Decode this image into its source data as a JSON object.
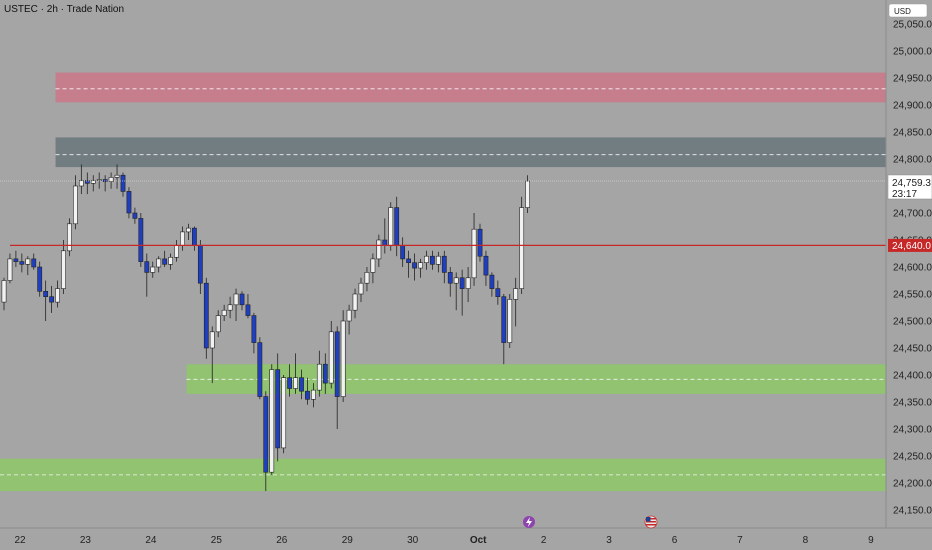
{
  "header": {
    "title": "USTEC · 2h · Trade Nation"
  },
  "currency": "USD",
  "price_badge": {
    "value": "24,759.3",
    "countdown": "23:17"
  },
  "level_badge": {
    "value": "24,640.0"
  },
  "icons": [
    "lightning-icon",
    "us-flag-icon"
  ],
  "colors": {
    "background": "#a5a5a5",
    "bull_candle": "#f2f2f2",
    "bear_candle": "#1f3fbf",
    "level_line": "#c62828",
    "supply_zone": "#c77a8a",
    "resistance_zone": "#6f7a80",
    "demand_zone": "#8fc46e"
  },
  "chart_data": {
    "type": "candlestick",
    "title": "USTEC · 2h · Trade Nation",
    "ylim": [
      24125,
      25075
    ],
    "y_ticks": [
      25050,
      25000,
      24950,
      24900,
      24850,
      24800,
      24750,
      24700,
      24650,
      24600,
      24550,
      24500,
      24450,
      24400,
      24350,
      24300,
      24250,
      24200,
      24150
    ],
    "y_tick_labels": [
      "25,050.0",
      "25,000.0",
      "24,950.0",
      "24,900.0",
      "24,850.0",
      "24,800.0",
      "24,750.0",
      "24,700.0",
      "24,650.0",
      "24,600.0",
      "24,550.0",
      "24,500.0",
      "24,450.0",
      "24,400.0",
      "24,350.0",
      "24,300.0",
      "24,250.0",
      "24,200.0",
      "24,150.0"
    ],
    "x_ticks": [
      {
        "label": "22",
        "bar": 0
      },
      {
        "label": "23",
        "bar": 11
      },
      {
        "label": "24",
        "bar": 22
      },
      {
        "label": "25",
        "bar": 33
      },
      {
        "label": "26",
        "bar": 44
      },
      {
        "label": "29",
        "bar": 55
      },
      {
        "label": "30",
        "bar": 66
      },
      {
        "label": "Oct",
        "bar": 77
      },
      {
        "label": "2",
        "bar": 88
      },
      {
        "label": "3",
        "bar": 99
      },
      {
        "label": "6",
        "bar": 110
      },
      {
        "label": "7",
        "bar": 121
      },
      {
        "label": "8",
        "bar": 132
      },
      {
        "label": "9",
        "bar": 143
      }
    ],
    "current_price": 24759.3,
    "horizontal_level": 24640.0,
    "zones": [
      {
        "name": "supply",
        "from": 24905,
        "to": 24960,
        "mid": 24930,
        "start_bar": 9
      },
      {
        "name": "resistance",
        "from": 24785,
        "to": 24840,
        "mid": 24808,
        "start_bar": 9
      },
      {
        "name": "demand-upper",
        "from": 24365,
        "to": 24420,
        "mid": 24392,
        "start_bar": 31
      },
      {
        "name": "demand-lower",
        "from": 24185,
        "to": 24245,
        "mid": 24215,
        "start_bar": 0
      }
    ],
    "candles": [
      {
        "o": 24535,
        "h": 24580,
        "l": 24520,
        "c": 24575
      },
      {
        "o": 24575,
        "h": 24625,
        "l": 24570,
        "c": 24615
      },
      {
        "o": 24615,
        "h": 24630,
        "l": 24600,
        "c": 24610
      },
      {
        "o": 24610,
        "h": 24625,
        "l": 24590,
        "c": 24605
      },
      {
        "o": 24605,
        "h": 24620,
        "l": 24585,
        "c": 24615
      },
      {
        "o": 24615,
        "h": 24625,
        "l": 24595,
        "c": 24600
      },
      {
        "o": 24600,
        "h": 24610,
        "l": 24545,
        "c": 24555
      },
      {
        "o": 24555,
        "h": 24575,
        "l": 24500,
        "c": 24545
      },
      {
        "o": 24545,
        "h": 24565,
        "l": 24515,
        "c": 24535
      },
      {
        "o": 24535,
        "h": 24575,
        "l": 24525,
        "c": 24560
      },
      {
        "o": 24560,
        "h": 24650,
        "l": 24550,
        "c": 24630
      },
      {
        "o": 24630,
        "h": 24690,
        "l": 24620,
        "c": 24680
      },
      {
        "o": 24680,
        "h": 24770,
        "l": 24670,
        "c": 24750
      },
      {
        "o": 24750,
        "h": 24790,
        "l": 24735,
        "c": 24760
      },
      {
        "o": 24760,
        "h": 24775,
        "l": 24735,
        "c": 24755
      },
      {
        "o": 24755,
        "h": 24770,
        "l": 24740,
        "c": 24760
      },
      {
        "o": 24760,
        "h": 24775,
        "l": 24745,
        "c": 24762
      },
      {
        "o": 24762,
        "h": 24770,
        "l": 24740,
        "c": 24758
      },
      {
        "o": 24758,
        "h": 24775,
        "l": 24745,
        "c": 24766
      },
      {
        "o": 24766,
        "h": 24790,
        "l": 24745,
        "c": 24770
      },
      {
        "o": 24770,
        "h": 24775,
        "l": 24730,
        "c": 24740
      },
      {
        "o": 24740,
        "h": 24748,
        "l": 24690,
        "c": 24700
      },
      {
        "o": 24700,
        "h": 24710,
        "l": 24680,
        "c": 24690
      },
      {
        "o": 24690,
        "h": 24700,
        "l": 24600,
        "c": 24610
      },
      {
        "o": 24610,
        "h": 24625,
        "l": 24545,
        "c": 24590
      },
      {
        "o": 24590,
        "h": 24610,
        "l": 24580,
        "c": 24600
      },
      {
        "o": 24600,
        "h": 24620,
        "l": 24590,
        "c": 24615
      },
      {
        "o": 24615,
        "h": 24630,
        "l": 24600,
        "c": 24605
      },
      {
        "o": 24605,
        "h": 24625,
        "l": 24595,
        "c": 24618
      },
      {
        "o": 24618,
        "h": 24650,
        "l": 24610,
        "c": 24640
      },
      {
        "o": 24640,
        "h": 24675,
        "l": 24630,
        "c": 24665
      },
      {
        "o": 24665,
        "h": 24680,
        "l": 24650,
        "c": 24672
      },
      {
        "o": 24672,
        "h": 24675,
        "l": 24630,
        "c": 24640
      },
      {
        "o": 24640,
        "h": 24650,
        "l": 24550,
        "c": 24570
      },
      {
        "o": 24570,
        "h": 24580,
        "l": 24430,
        "c": 24450
      },
      {
        "o": 24450,
        "h": 24490,
        "l": 24385,
        "c": 24480
      },
      {
        "o": 24480,
        "h": 24520,
        "l": 24470,
        "c": 24510
      },
      {
        "o": 24510,
        "h": 24530,
        "l": 24500,
        "c": 24520
      },
      {
        "o": 24520,
        "h": 24545,
        "l": 24505,
        "c": 24530
      },
      {
        "o": 24530,
        "h": 24560,
        "l": 24500,
        "c": 24550
      },
      {
        "o": 24550,
        "h": 24555,
        "l": 24520,
        "c": 24530
      },
      {
        "o": 24530,
        "h": 24550,
        "l": 24505,
        "c": 24510
      },
      {
        "o": 24510,
        "h": 24515,
        "l": 24440,
        "c": 24460
      },
      {
        "o": 24460,
        "h": 24470,
        "l": 24355,
        "c": 24360
      },
      {
        "o": 24360,
        "h": 24370,
        "l": 24185,
        "c": 24220
      },
      {
        "o": 24220,
        "h": 24420,
        "l": 24215,
        "c": 24410
      },
      {
        "o": 24410,
        "h": 24440,
        "l": 24240,
        "c": 24265
      },
      {
        "o": 24265,
        "h": 24400,
        "l": 24255,
        "c": 24395
      },
      {
        "o": 24395,
        "h": 24420,
        "l": 24360,
        "c": 24375
      },
      {
        "o": 24375,
        "h": 24440,
        "l": 24365,
        "c": 24395
      },
      {
        "o": 24395,
        "h": 24410,
        "l": 24355,
        "c": 24370
      },
      {
        "o": 24370,
        "h": 24395,
        "l": 24345,
        "c": 24355
      },
      {
        "o": 24355,
        "h": 24385,
        "l": 24340,
        "c": 24372
      },
      {
        "o": 24372,
        "h": 24445,
        "l": 24360,
        "c": 24420
      },
      {
        "o": 24420,
        "h": 24440,
        "l": 24365,
        "c": 24385
      },
      {
        "o": 24385,
        "h": 24500,
        "l": 24375,
        "c": 24480
      },
      {
        "o": 24480,
        "h": 24490,
        "l": 24300,
        "c": 24360
      },
      {
        "o": 24360,
        "h": 24520,
        "l": 24350,
        "c": 24500
      },
      {
        "o": 24500,
        "h": 24530,
        "l": 24475,
        "c": 24520
      },
      {
        "o": 24520,
        "h": 24560,
        "l": 24505,
        "c": 24550
      },
      {
        "o": 24550,
        "h": 24580,
        "l": 24535,
        "c": 24570
      },
      {
        "o": 24570,
        "h": 24600,
        "l": 24555,
        "c": 24590
      },
      {
        "o": 24590,
        "h": 24625,
        "l": 24570,
        "c": 24615
      },
      {
        "o": 24615,
        "h": 24660,
        "l": 24600,
        "c": 24650
      },
      {
        "o": 24650,
        "h": 24690,
        "l": 24625,
        "c": 24640
      },
      {
        "o": 24640,
        "h": 24720,
        "l": 24630,
        "c": 24710
      },
      {
        "o": 24710,
        "h": 24730,
        "l": 24620,
        "c": 24640
      },
      {
        "o": 24640,
        "h": 24655,
        "l": 24600,
        "c": 24615
      },
      {
        "o": 24615,
        "h": 24630,
        "l": 24580,
        "c": 24608
      },
      {
        "o": 24608,
        "h": 24625,
        "l": 24575,
        "c": 24598
      },
      {
        "o": 24598,
        "h": 24615,
        "l": 24580,
        "c": 24608
      },
      {
        "o": 24608,
        "h": 24630,
        "l": 24595,
        "c": 24620
      },
      {
        "o": 24620,
        "h": 24630,
        "l": 24595,
        "c": 24605
      },
      {
        "o": 24605,
        "h": 24628,
        "l": 24590,
        "c": 24620
      },
      {
        "o": 24620,
        "h": 24630,
        "l": 24570,
        "c": 24590
      },
      {
        "o": 24590,
        "h": 24600,
        "l": 24545,
        "c": 24570
      },
      {
        "o": 24570,
        "h": 24590,
        "l": 24520,
        "c": 24580
      },
      {
        "o": 24580,
        "h": 24595,
        "l": 24510,
        "c": 24560
      },
      {
        "o": 24560,
        "h": 24600,
        "l": 24535,
        "c": 24580
      },
      {
        "o": 24580,
        "h": 24700,
        "l": 24565,
        "c": 24670
      },
      {
        "o": 24670,
        "h": 24680,
        "l": 24610,
        "c": 24620
      },
      {
        "o": 24620,
        "h": 24630,
        "l": 24565,
        "c": 24585
      },
      {
        "o": 24585,
        "h": 24590,
        "l": 24545,
        "c": 24560
      },
      {
        "o": 24560,
        "h": 24575,
        "l": 24530,
        "c": 24545
      },
      {
        "o": 24545,
        "h": 24550,
        "l": 24420,
        "c": 24460
      },
      {
        "o": 24460,
        "h": 24550,
        "l": 24450,
        "c": 24540
      },
      {
        "o": 24540,
        "h": 24580,
        "l": 24490,
        "c": 24560
      },
      {
        "o": 24560,
        "h": 24730,
        "l": 24550,
        "c": 24710
      },
      {
        "o": 24710,
        "h": 24770,
        "l": 24700,
        "c": 24759
      }
    ]
  }
}
